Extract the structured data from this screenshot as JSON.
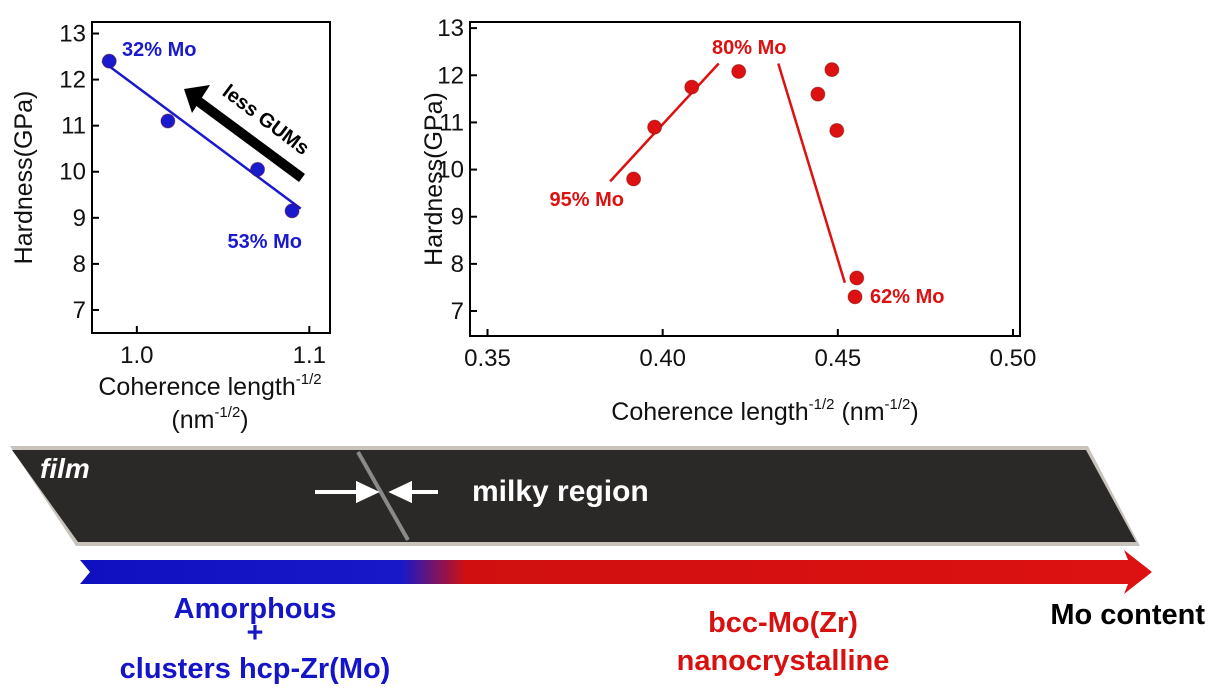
{
  "chart_data": [
    {
      "type": "scatter",
      "color": "#1a1acc",
      "ylabel": "Hardness(GPa)",
      "xlabel": [
        "Coherence length",
        "-1/2",
        "(nm",
        "-1/2",
        ")"
      ],
      "x": [
        0.984,
        1.018,
        1.07,
        1.09
      ],
      "values": [
        12.4,
        11.1,
        10.05,
        9.15
      ],
      "fits": [
        {
          "x": [
            0.98,
            1.095
          ],
          "y": [
            12.4,
            9.2
          ]
        }
      ],
      "annotations": [
        "32% Mo",
        "53% Mo",
        "less GUMs"
      ],
      "xlim": [
        0.974,
        1.112
      ],
      "ylim": [
        6.5,
        13.25
      ],
      "xticks": [
        {
          "value": 1.0,
          "label": "1.0"
        },
        1.1
      ],
      "yticks": [
        7,
        8,
        9,
        10,
        11,
        12,
        13
      ]
    },
    {
      "type": "scatter",
      "color": "#dd1111",
      "ylabel": "Hardness(GPa)",
      "xlabel": [
        "Coherence length",
        "-1/2",
        " (nm",
        "-1/2",
        ")"
      ],
      "x": [
        0.3917,
        0.3977,
        0.4083,
        0.4217,
        0.4443,
        0.4483,
        0.4497,
        0.4554,
        0.4549
      ],
      "values": [
        9.8,
        10.9,
        11.75,
        12.08,
        11.6,
        12.12,
        10.83,
        7.7,
        7.3
      ],
      "fits": [
        {
          "x": [
            0.385,
            0.416
          ],
          "y": [
            9.75,
            12.25
          ]
        },
        {
          "x": [
            0.433,
            0.452
          ],
          "y": [
            12.25,
            7.6
          ]
        }
      ],
      "annotations": [
        "80% Mo",
        "95% Mo",
        "62% Mo"
      ],
      "xlim": [
        0.345,
        0.502
      ],
      "ylim": [
        6.47,
        13.13
      ],
      "xticks": [
        0.35,
        {
          "value": 0.4,
          "label": "0.40"
        },
        0.45,
        {
          "value": 0.5,
          "label": "0.50"
        }
      ],
      "yticks": [
        7,
        8,
        9,
        10,
        11,
        12,
        13
      ]
    }
  ],
  "diagram": {
    "film": "film",
    "milky_region": "milky region",
    "left_label": [
      "Amorphous",
      "+",
      "clusters hcp-Zr(Mo)"
    ],
    "right_label": [
      "bcc-Mo(Zr)",
      "nanocrystalline"
    ],
    "axis_label": "Mo content"
  }
}
